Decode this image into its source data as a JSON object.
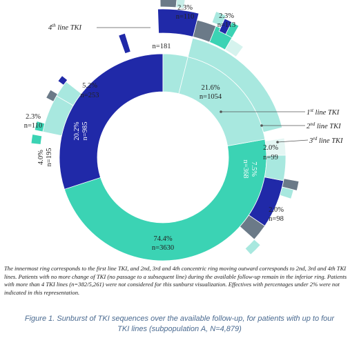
{
  "chart_data": {
    "type": "sunburst",
    "rings": [
      {
        "name": "1st line TKI",
        "segments": [
          {
            "label": "1st line TKI",
            "percent": "74.4%",
            "n": "n=3630",
            "value": 3630,
            "color": "#3bd3b4"
          },
          {
            "label": "2nd line TKI",
            "percent": "20.2%",
            "n": "n=985",
            "value": 985,
            "color": "#2029a8"
          },
          {
            "label": "3rd line TKI",
            "percent": "4.0%",
            "n": "n=195",
            "value": 195,
            "color": "#a8e8df"
          },
          {
            "label": "",
            "percent": "",
            "n": "",
            "value": 69,
            "color": "#ffffff"
          }
        ]
      },
      {
        "name": "2nd line TKI",
        "segments": [
          {
            "label": "",
            "percent": "5.2%",
            "n": "n=253",
            "value": 253,
            "color": "#a8e8df"
          },
          {
            "label": "",
            "percent": "21.6%",
            "n": "n=1054",
            "value": 1054,
            "color": "#a8e8df"
          },
          {
            "label": "",
            "percent": "7.5%",
            "n": "n=368",
            "value": 368,
            "color": "#2029a8"
          },
          {
            "label": "",
            "percent": "2.0%",
            "n": "n=98",
            "value": 98,
            "color": "#6b7a88"
          },
          {
            "label": "",
            "percent": "2.3%",
            "n": "n=110",
            "value": 110,
            "color": "#a8e8df"
          }
        ]
      },
      {
        "name": "3rd line TKI",
        "segments": [
          {
            "label": "",
            "percent": "3.7%",
            "n": "n=181",
            "value": 181,
            "color": "#2029a8"
          },
          {
            "label": "",
            "percent": "2.3%",
            "n": "n=110",
            "value": 110,
            "color": "#6b7a88"
          },
          {
            "label": "",
            "percent": "2.3%",
            "n": "n=113",
            "value": 113,
            "color": "#3bd3b4"
          },
          {
            "label": "",
            "percent": "2.0%",
            "n": "n=99",
            "value": 99,
            "color": "#a8e8df"
          }
        ]
      }
    ],
    "legend": [
      "1st line TKI",
      "2nd line TKI",
      "3rd line TKI",
      "4th line TKI"
    ]
  },
  "labels": {
    "l744": {
      "pct": "74.4%",
      "n": "n=3630"
    },
    "l202": {
      "pct": "20.2%",
      "n": "n=985"
    },
    "l40": {
      "pct": "4.0%",
      "n": "n=195"
    },
    "l23a": {
      "pct": "2.3%",
      "n": "n=110"
    },
    "l52": {
      "pct": "5.2%",
      "n": "n=253"
    },
    "l216": {
      "pct": "21.6%",
      "n": "n=1054"
    },
    "l75": {
      "pct": "7.5%",
      "n": "n=368"
    },
    "l20a": {
      "pct": "2.0%",
      "n": "n=99"
    },
    "l20b": {
      "pct": "2.0%",
      "n": "n=98"
    },
    "l37": {
      "pct": "3.7%",
      "n": "n=181"
    },
    "l23b": {
      "pct": "2.3%",
      "n": "n=110"
    },
    "l23c": {
      "pct": "2.3%",
      "n": "n=113"
    }
  },
  "ring_labels": {
    "first": {
      "num": "1",
      "sup": "st",
      "rest": " line TKI"
    },
    "second": {
      "num": "2",
      "sup": "nd",
      "rest": " line TKI"
    },
    "third": {
      "num": "3",
      "sup": "rd",
      "rest": " line TKI"
    },
    "fourth": {
      "num": "4",
      "sup": "th",
      "rest": " line TKI"
    }
  },
  "note": "The innermost ring corresponds to the first line TKI, and 2nd, 3rd and 4th concentric ring moving outward corresponds to 2nd, 3rd and 4th TKI lines. Patients with no more change of TKI (no passage to a subsequent line) during the available follow-up remain in the inferior ring. Patients with more than 4 TKI lines (n=382/5,261) were not considered for this sunburst visualization. Effectives with percentages under 2% were not indicated in this representation.",
  "caption": {
    "line1": "Figure 1. Sunburst of TKI sequences over the available follow-up, for patients with up to four",
    "line2": "TKI lines (subpopulation A, N=4,879)"
  },
  "colors": {
    "teal": "#3bd3b4",
    "navy": "#2029a8",
    "light": "#a8e8df",
    "gray": "#6b7a88",
    "caption": "#4a6a90"
  }
}
